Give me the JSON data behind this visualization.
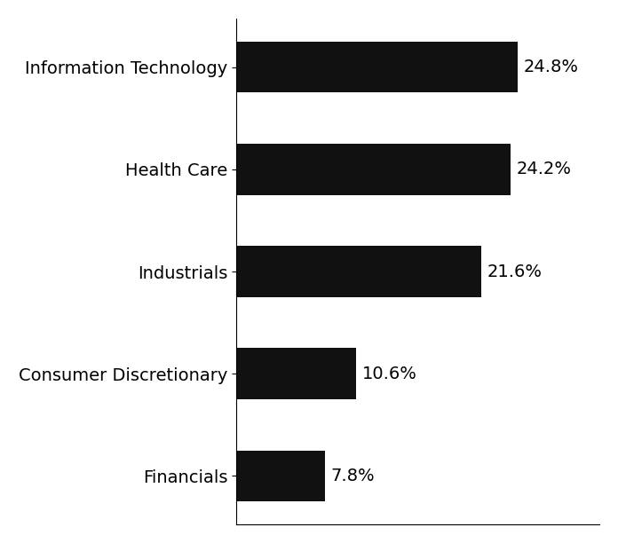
{
  "categories": [
    "Information Technology",
    "Health Care",
    "Industrials",
    "Consumer Discretionary",
    "Financials"
  ],
  "values": [
    24.8,
    24.2,
    21.6,
    10.6,
    7.8
  ],
  "labels": [
    "24.8%",
    "24.2%",
    "21.6%",
    "10.6%",
    "7.8%"
  ],
  "bar_color": "#111111",
  "background_color": "#ffffff",
  "label_fontsize": 14,
  "tick_fontsize": 14,
  "bar_height": 0.5,
  "xlim": [
    0,
    32
  ]
}
